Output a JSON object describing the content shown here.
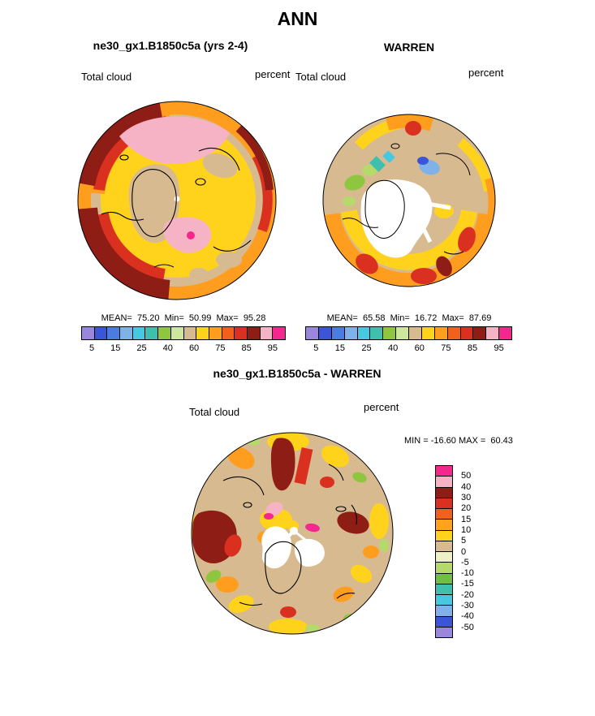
{
  "header": {
    "title": "ANN"
  },
  "panels": {
    "model": {
      "title": "ne30_gx1.B1850c5a (yrs 2-4)",
      "field_label": "Total cloud",
      "units_label": "percent",
      "stats_text": "MEAN=  75.20  Min=  50.99  Max=  95.28"
    },
    "obs": {
      "title": "WARREN",
      "field_label": "Total cloud",
      "units_label": "percent",
      "stats_text": "MEAN=  65.58  Min=  16.72  Max=  87.69"
    },
    "diff": {
      "title": "ne30_gx1.B1850c5a - WARREN",
      "field_label": "Total cloud",
      "units_label": "percent",
      "minmax_text": "MIN = -16.60 MAX =  60.43"
    }
  },
  "shared_colorbar": {
    "tick_labels": [
      "5",
      "15",
      "25",
      "40",
      "60",
      "75",
      "85",
      "95"
    ],
    "colors": [
      "#9b86dd",
      "#3a55d8",
      "#4a7ce2",
      "#7fb2e8",
      "#46c8e0",
      "#3fbfae",
      "#8ec63f",
      "#cde89a",
      "#d8ba90",
      "#ffd21c",
      "#ff9d1e",
      "#f2611c",
      "#d93020",
      "#8e1d15",
      "#f6b3c6",
      "#f3278d"
    ]
  },
  "diff_colorbar": {
    "tick_labels": [
      "50",
      "40",
      "30",
      "20",
      "15",
      "10",
      "5",
      "0",
      "-5",
      "-10",
      "-15",
      "-20",
      "-30",
      "-40",
      "-50"
    ],
    "colors": [
      "#f3278d",
      "#f6b3c6",
      "#8e1d15",
      "#d93020",
      "#f2611c",
      "#ffa21e",
      "#ffd21c",
      "#d8ba90",
      "#eff0c8",
      "#b5d96a",
      "#6fbf44",
      "#3fbfae",
      "#46c8e0",
      "#7fb2e8",
      "#3a55d8",
      "#9b86dd"
    ]
  },
  "map_palette": {
    "background_tan": "#d8ba90",
    "coastline": "#000000",
    "missing_data": "#ffffff"
  },
  "chart_data": [
    {
      "type": "heatmap",
      "subtype": "north-polar-stereographic-contour-map",
      "season": "ANN",
      "title": "ne30_gx1.B1850c5a (yrs 2-4)",
      "variable": "Total cloud",
      "units": "percent",
      "stats": {
        "mean": 75.2,
        "min": 50.99,
        "max": 95.28
      },
      "contour_levels": [
        5,
        15,
        25,
        40,
        60,
        75,
        85,
        95
      ],
      "legend_position": "below"
    },
    {
      "type": "heatmap",
      "subtype": "north-polar-stereographic-contour-map",
      "season": "ANN",
      "title": "WARREN",
      "variable": "Total cloud",
      "units": "percent",
      "stats": {
        "mean": 65.58,
        "min": 16.72,
        "max": 87.69
      },
      "contour_levels": [
        5,
        15,
        25,
        40,
        60,
        75,
        85,
        95
      ],
      "legend_position": "below"
    },
    {
      "type": "heatmap",
      "subtype": "north-polar-stereographic-contour-map",
      "season": "ANN",
      "title": "ne30_gx1.B1850c5a - WARREN",
      "variable": "Total cloud",
      "units": "percent",
      "stats": {
        "min": -16.6,
        "max": 60.43
      },
      "contour_levels": [
        -50,
        -40,
        -30,
        -20,
        -15,
        -10,
        -5,
        0,
        5,
        10,
        15,
        20,
        30,
        40,
        50
      ],
      "legend_position": "right"
    }
  ]
}
